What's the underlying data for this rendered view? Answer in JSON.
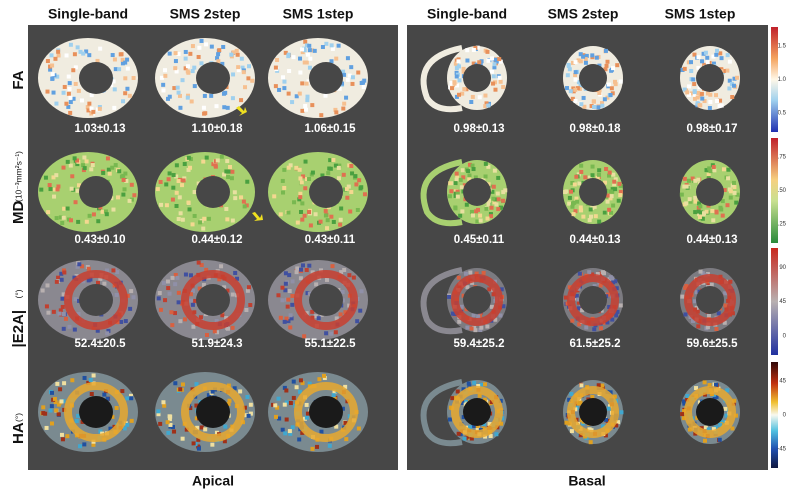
{
  "panels": [
    {
      "label": "Apical",
      "columns": [
        "Single-band",
        "SMS 2step",
        "SMS 1step"
      ],
      "values": [
        [
          "1.03±0.13",
          "1.10±0.18",
          "1.06±0.15"
        ],
        [
          "0.43±0.10",
          "0.44±0.12",
          "0.43±0.11"
        ],
        [
          "52.4±20.5",
          "51.9±24.3",
          "55.1±22.5"
        ],
        [
          "",
          "",
          ""
        ]
      ]
    },
    {
      "label": "Basal",
      "columns": [
        "Single-band",
        "SMS 2step",
        "SMS 1step"
      ],
      "values": [
        [
          "0.98±0.13",
          "0.98±0.18",
          "0.98±0.17"
        ],
        [
          "0.45±0.11",
          "0.44±0.13",
          "0.44±0.13"
        ],
        [
          "59.4±25.2",
          "61.5±25.2",
          "59.6±25.5"
        ],
        [
          "",
          "",
          ""
        ]
      ]
    }
  ],
  "rows": [
    {
      "name": "FA"
    },
    {
      "name": "MD",
      "unit": "(10⁻³mm²s⁻¹)"
    },
    {
      "name": "|E2A|",
      "unit": "(°)"
    },
    {
      "name": "HA",
      "unit": "(°)"
    }
  ],
  "colorbars": [
    [
      "1.5",
      "1.0",
      "0.5"
    ],
    [
      ".75",
      ".50",
      ".25"
    ],
    [
      "90",
      "45",
      "0"
    ],
    [
      "45",
      "0",
      "-45"
    ]
  ]
}
